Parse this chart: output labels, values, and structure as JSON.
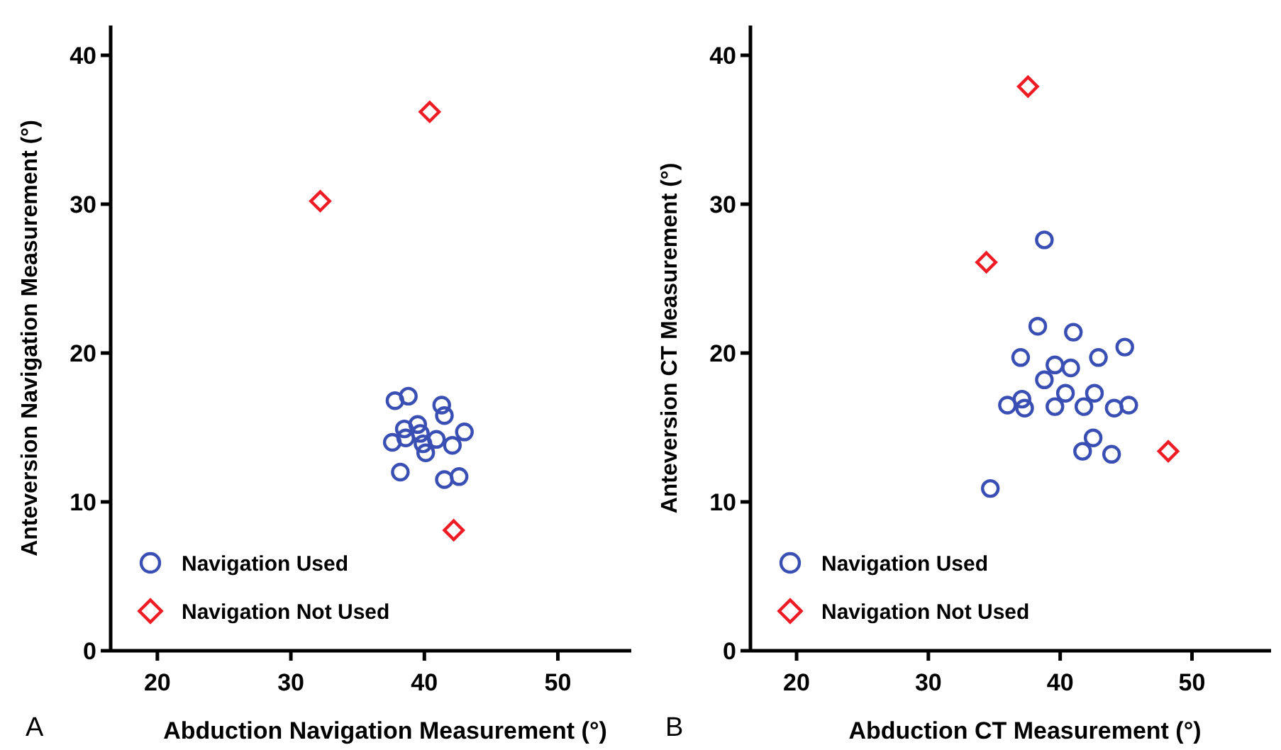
{
  "chart_data": [
    {
      "type": "scatter",
      "xlabel": "Abduction Navigation Measurement (°)",
      "ylabel": "Anteversion Navigation Measurement (°)",
      "annotations": [
        "A"
      ],
      "xlim": [
        16.5,
        55.5
      ],
      "ylim": [
        0,
        42
      ],
      "xticks": [
        20,
        30,
        40,
        50
      ],
      "yticks": [
        0,
        10,
        20,
        30,
        40
      ],
      "grid": false,
      "legend": "bottom left",
      "series": [
        {
          "name": "Navigation Used",
          "color": "#3a4fb3",
          "marker": "circle",
          "x": [
            37.8,
            38.8,
            41.3,
            41.5,
            38.5,
            39.5,
            39.7,
            38.6,
            37.6,
            39.9,
            40.1,
            40.9,
            42.1,
            43.0,
            38.2,
            41.5,
            42.6
          ],
          "values": [
            16.8,
            17.1,
            16.5,
            15.8,
            14.9,
            15.2,
            14.6,
            14.3,
            14.0,
            13.9,
            13.3,
            14.2,
            13.8,
            14.7,
            12.0,
            11.5,
            11.7
          ]
        },
        {
          "name": "Navigation Not Used",
          "color": "#ee1c24",
          "marker": "diamond",
          "x": [
            40.4,
            32.2,
            42.2
          ],
          "values": [
            36.2,
            30.2,
            8.1
          ]
        }
      ]
    },
    {
      "type": "scatter",
      "xlabel": "Abduction CT Measurement (°)",
      "ylabel": "Anteversion CT Measurement (°)",
      "annotations": [
        "B"
      ],
      "xlim": [
        16.5,
        56
      ],
      "ylim": [
        0,
        42
      ],
      "xticks": [
        20,
        30,
        40,
        50
      ],
      "yticks": [
        0,
        10,
        20,
        30,
        40
      ],
      "grid": false,
      "legend": "bottom left",
      "series": [
        {
          "name": "Navigation Used",
          "color": "#3a4fb3",
          "marker": "circle",
          "x": [
            38.8,
            38.3,
            41.0,
            44.9,
            37.0,
            42.9,
            39.6,
            40.8,
            38.8,
            40.4,
            42.6,
            37.1,
            36.0,
            37.3,
            39.6,
            41.8,
            44.1,
            45.2,
            42.5,
            41.7,
            43.9,
            34.7
          ],
          "values": [
            27.6,
            21.8,
            21.4,
            20.4,
            19.7,
            19.7,
            19.2,
            19.0,
            18.2,
            17.3,
            17.3,
            16.9,
            16.5,
            16.3,
            16.4,
            16.4,
            16.3,
            16.5,
            14.3,
            13.4,
            13.2,
            10.9
          ]
        },
        {
          "name": "Navigation Not Used",
          "color": "#ee1c24",
          "marker": "diamond",
          "x": [
            37.56,
            34.4,
            48.2
          ],
          "values": [
            37.9,
            26.1,
            13.4
          ]
        }
      ]
    }
  ]
}
